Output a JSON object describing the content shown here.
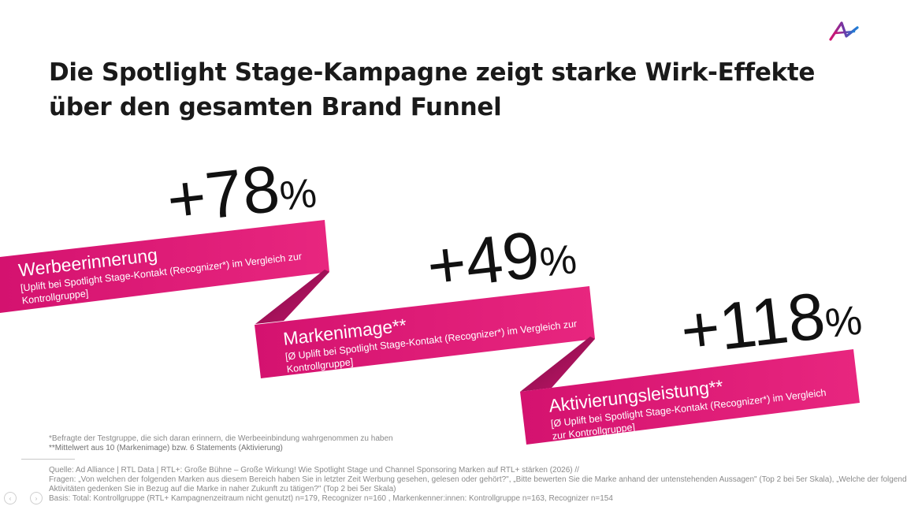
{
  "title": "Die Spotlight Stage-Kampagne zeigt starke Wirk-Effekte über den gesamten Brand Funnel",
  "colors": {
    "magenta": "#d4126f",
    "magenta_dark": "#8e0f4d",
    "magenta_light": "#e6389a"
  },
  "logo": {
    "icon": "ad-alliance-logo-icon"
  },
  "kpis": [
    {
      "value": "+78",
      "unit": "%",
      "label": "Werbeerinnerung",
      "note": "[Uplift bei Spotlight Stage-Kontakt (Recognizer*) im Vergleich zur",
      "note2": "Kontrollgruppe]"
    },
    {
      "value": "+49",
      "unit": "%",
      "label": "Markenimage**",
      "note": "[Ø Uplift bei Spotlight Stage-Kontakt (Recognizer*) im Vergleich zur",
      "note2": "Kontrollgruppe]"
    },
    {
      "value": "+118",
      "unit": "%",
      "label": "Aktivierungsleistung**",
      "note": "[Ø Uplift bei Spotlight Stage-Kontakt (Recognizer*) im Vergleich",
      "note2": "zur Kontrollgruppe]"
    }
  ],
  "footnotes": [
    "*Befragte der Testgruppe, die sich daran erinnern, die Werbeeinbindung wahrgenommen zu haben",
    "**Mittelwert aus 10 (Markenimage) bzw. 6 Statements (Aktivierung)"
  ],
  "source": {
    "line1": "Quelle: Ad Alliance | RTL Data | RTL+: Große Bühne – Große Wirkung! Wie Spotlight Stage und Channel Sponsoring Marken auf RTL+ stärken (2026) //",
    "line2": "Fragen: „Von welchen der folgenden Marken aus diesem Bereich haben Sie in letzter Zeit Werbung gesehen, gelesen oder gehört?\", „Bitte bewerten Sie die Marke anhand der untenstehenden Aussagen\" (Top 2 bei 5er Skala), „Welche der folgenden",
    "line3": "Aktivitäten gedenken Sie in Bezug auf die Marke in naher Zukunft zu tätigen?\"  (Top 2 bei 5er Skala)",
    "line4": "Basis: Total: Kontrollgruppe (RTL+ Kampagnenzeitraum nicht genutzt) n=179, Recognizer n=160 , Markenkenner:innen: Kontrollgruppe n=163, Recognizer n=154"
  },
  "controls": [
    {
      "icon": "prev-slide-icon",
      "glyph": "‹"
    },
    {
      "icon": "next-slide-icon",
      "glyph": "›"
    }
  ]
}
